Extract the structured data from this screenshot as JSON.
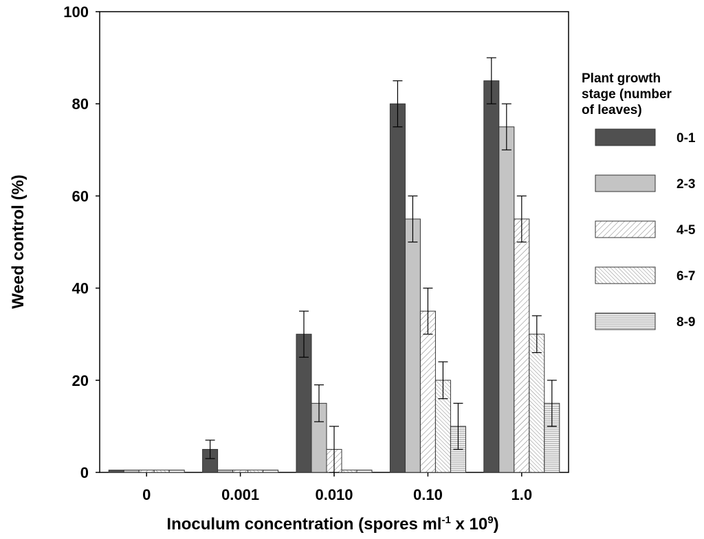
{
  "chart_data": {
    "type": "bar",
    "title": "",
    "xlabel": "Inoculum concentration (spores ml",
    "xlabel_sup1": "-1",
    "xlabel_mid": " x 10",
    "xlabel_sup2": "9",
    "xlabel_end": ")",
    "ylabel": "Weed control (%)",
    "ylim": [
      0,
      100
    ],
    "yticks": [
      0,
      20,
      40,
      60,
      80,
      100
    ],
    "categories": [
      "0",
      "0.001",
      "0.010",
      "0.10",
      "1.0"
    ],
    "legend_title": [
      "Plant growth",
      "stage (number",
      "of leaves)"
    ],
    "legend_position": "right",
    "series": [
      {
        "name": "0-1",
        "pattern": "solid-dark",
        "color": "#505050",
        "values": [
          0.5,
          5,
          30,
          80,
          85
        ],
        "errors": [
          0,
          2,
          5,
          5,
          5
        ]
      },
      {
        "name": "2-3",
        "pattern": "solid-light",
        "color": "#c4c4c4",
        "values": [
          0.5,
          0.5,
          15,
          55,
          75
        ],
        "errors": [
          0,
          0,
          4,
          5,
          5
        ]
      },
      {
        "name": "4-5",
        "pattern": "diagonal",
        "color": "#ffffff",
        "values": [
          0.5,
          0.5,
          5,
          35,
          55
        ],
        "errors": [
          0,
          0,
          5,
          5,
          5
        ]
      },
      {
        "name": "6-7",
        "pattern": "diagonal-dense",
        "color": "#ffffff",
        "values": [
          0.5,
          0.5,
          0.5,
          20,
          30
        ],
        "errors": [
          0,
          0,
          0,
          4,
          4
        ]
      },
      {
        "name": "8-9",
        "pattern": "horizontal",
        "color": "#ffffff",
        "values": [
          0.5,
          0.5,
          0.5,
          10,
          15
        ],
        "errors": [
          0,
          0,
          0,
          5,
          5
        ]
      }
    ]
  }
}
